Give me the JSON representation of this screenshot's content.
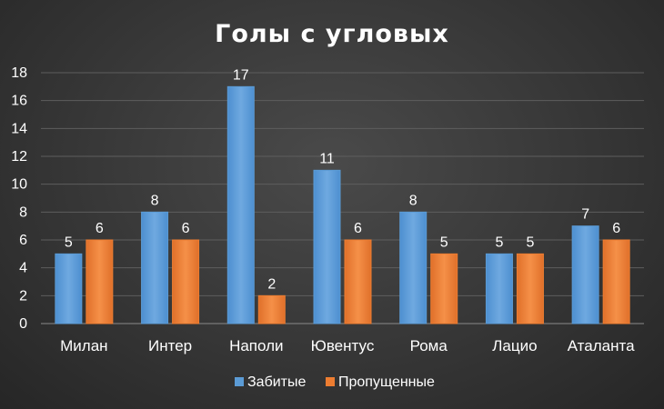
{
  "chart_data": {
    "type": "bar",
    "title": "Голы с угловых",
    "categories": [
      "Милан",
      "Интер",
      "Наполи",
      "Ювентус",
      "Рома",
      "Лацио",
      "Аталанта"
    ],
    "series": [
      {
        "name": "Забитые",
        "values": [
          5,
          8,
          17,
          11,
          8,
          5,
          7
        ],
        "color": "#5b9bd5"
      },
      {
        "name": "Пропущенные",
        "values": [
          6,
          6,
          2,
          6,
          5,
          5,
          6
        ],
        "color": "#ed7d31"
      }
    ],
    "ylim": [
      0,
      18
    ],
    "yticks": [
      0,
      2,
      4,
      6,
      8,
      10,
      12,
      14,
      16,
      18
    ],
    "grid": true,
    "legend_position": "bottom",
    "xlabel": "",
    "ylabel": ""
  }
}
